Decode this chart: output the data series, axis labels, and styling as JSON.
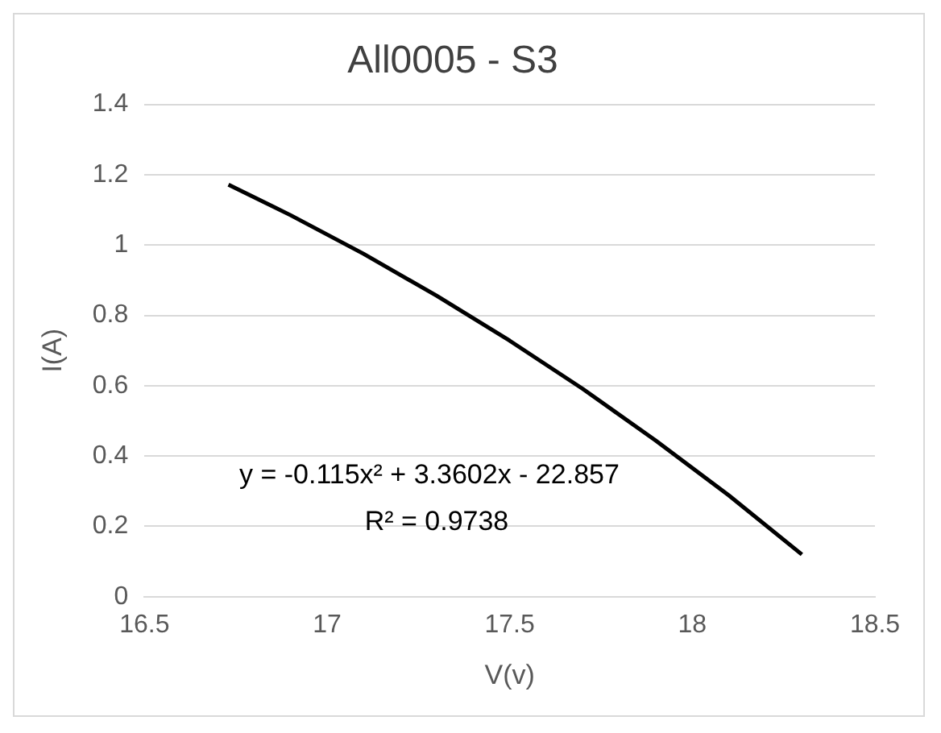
{
  "chart_data": {
    "type": "line",
    "title": "All0005 - S3",
    "xlabel": "V(v)",
    "ylabel": "I(A)",
    "x": [
      16.73,
      16.9,
      17.1,
      17.3,
      17.5,
      17.7,
      17.9,
      18.1,
      18.3
    ],
    "series": [
      {
        "type": "line",
        "color": "#000000",
        "values": [
          1.172,
          1.085,
          0.975,
          0.856,
          0.728,
          0.591,
          0.444,
          0.288,
          0.12
        ]
      }
    ],
    "xlim": [
      16.5,
      18.5
    ],
    "xticks": [
      16.5,
      17,
      17.5,
      18,
      18.5
    ],
    "ylim": [
      0,
      1.4
    ],
    "yticks": [
      0,
      0.2,
      0.4,
      0.6,
      0.8,
      1,
      1.2,
      1.4
    ],
    "grid": "y",
    "marker": "none",
    "line_style": "solid",
    "annotations": [
      "y = -0.115x² + 3.3602x - 22.857",
      "R² = 0.9738"
    ]
  }
}
